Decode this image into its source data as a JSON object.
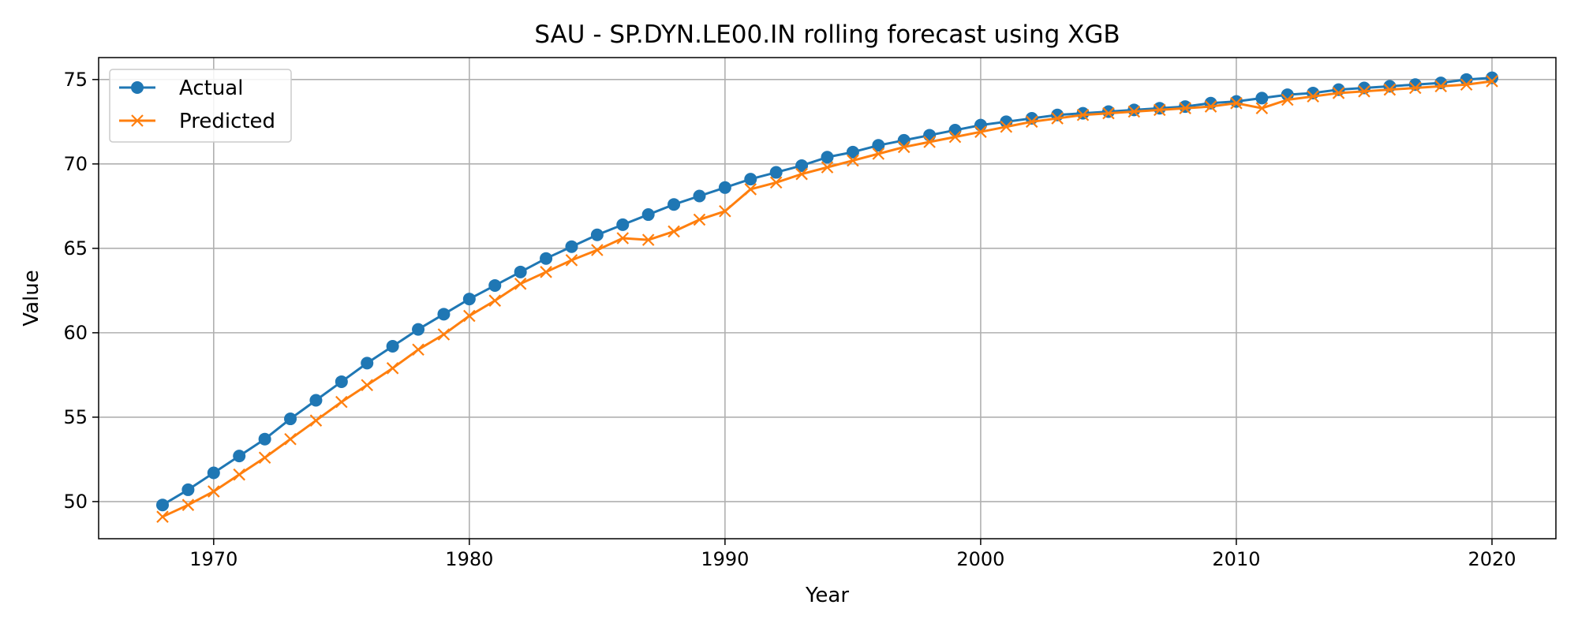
{
  "chart_data": {
    "type": "line",
    "title": "SAU - SP.DYN.LE00.IN rolling forecast using XGB",
    "xlabel": "Year",
    "ylabel": "Value",
    "xlim": [
      1965.5,
      2022.5
    ],
    "ylim": [
      47.8,
      76.3
    ],
    "xticks": [
      1970,
      1980,
      1990,
      2000,
      2010,
      2020
    ],
    "yticks": [
      50,
      55,
      60,
      65,
      70,
      75
    ],
    "grid": true,
    "legend_position": "top-left",
    "x": [
      1968,
      1969,
      1970,
      1971,
      1972,
      1973,
      1974,
      1975,
      1976,
      1977,
      1978,
      1979,
      1980,
      1981,
      1982,
      1983,
      1984,
      1985,
      1986,
      1987,
      1988,
      1989,
      1990,
      1991,
      1992,
      1993,
      1994,
      1995,
      1996,
      1997,
      1998,
      1999,
      2000,
      2001,
      2002,
      2003,
      2004,
      2005,
      2006,
      2007,
      2008,
      2009,
      2010,
      2011,
      2012,
      2013,
      2014,
      2015,
      2016,
      2017,
      2018,
      2019,
      2020
    ],
    "series": [
      {
        "name": "Actual",
        "color": "#1f77b4",
        "marker": "circle",
        "values": [
          49.8,
          50.7,
          51.7,
          52.7,
          53.7,
          54.9,
          56.0,
          57.1,
          58.2,
          59.2,
          60.2,
          61.1,
          62.0,
          62.8,
          63.6,
          64.4,
          65.1,
          65.8,
          66.4,
          67.0,
          67.6,
          68.1,
          68.6,
          69.1,
          69.5,
          69.9,
          70.4,
          70.7,
          71.1,
          71.4,
          71.7,
          72.0,
          72.3,
          72.5,
          72.7,
          72.9,
          73.0,
          73.1,
          73.2,
          73.3,
          73.4,
          73.6,
          73.7,
          73.9,
          74.1,
          74.2,
          74.4,
          74.5,
          74.6,
          74.7,
          74.8,
          75.0,
          75.1
        ]
      },
      {
        "name": "Predicted",
        "color": "#ff7f0e",
        "marker": "x",
        "values": [
          49.1,
          49.8,
          50.6,
          51.6,
          52.6,
          53.7,
          54.8,
          55.9,
          56.9,
          57.9,
          59.0,
          59.9,
          61.0,
          61.9,
          62.9,
          63.6,
          64.3,
          64.9,
          65.6,
          65.5,
          66.0,
          66.7,
          67.2,
          68.5,
          68.9,
          69.4,
          69.8,
          70.2,
          70.6,
          71.0,
          71.3,
          71.6,
          71.9,
          72.2,
          72.5,
          72.7,
          72.9,
          73.0,
          73.1,
          73.2,
          73.3,
          73.4,
          73.6,
          73.3,
          73.8,
          74.0,
          74.2,
          74.3,
          74.4,
          74.5,
          74.6,
          74.7,
          74.9
        ]
      }
    ]
  }
}
